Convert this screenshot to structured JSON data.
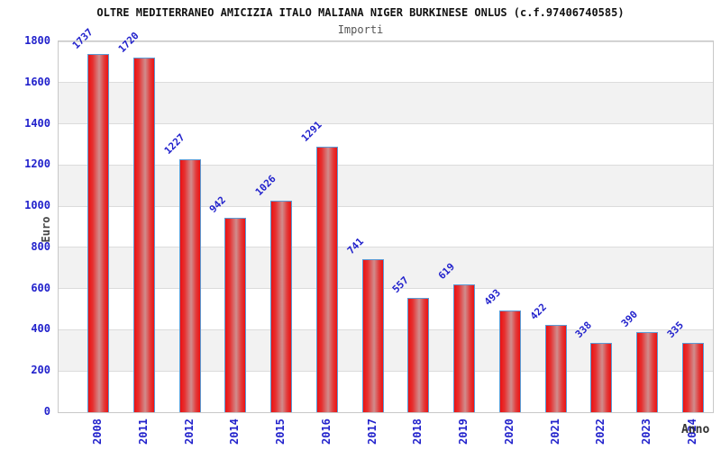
{
  "chart_data": {
    "type": "bar",
    "title": "OLTRE MEDITERRANEO AMICIZIA ITALO MALIANA NIGER BURKINESE ONLUS (c.f.97406740585)",
    "subtitle": "Importi",
    "xlabel": "Anno",
    "ylabel": "Euro",
    "categories": [
      "2008",
      "2011",
      "2012",
      "2014",
      "2015",
      "2016",
      "2017",
      "2018",
      "2019",
      "2020",
      "2021",
      "2022",
      "2023",
      "2024"
    ],
    "values": [
      1737,
      1720,
      1227,
      942,
      1026,
      1291,
      741,
      557,
      619,
      493,
      422,
      338,
      390,
      335
    ],
    "ylim": [
      0,
      1800
    ],
    "yticks": [
      0,
      200,
      400,
      600,
      800,
      1000,
      1200,
      1400,
      1600,
      1800
    ],
    "grid": true,
    "legend": "none",
    "background_bands": "alternating gray/white every 200 units",
    "colors": {
      "tick_and_value_labels": "#2222cc",
      "bar_edge_red": "#ec1212",
      "bar_center_highlight": "#d08d8d",
      "bar_border_blue": "#5b9bd5",
      "band_gray": "#f2f2f2",
      "gridline": "#dcdcdc",
      "plot_frame": "#c8c8c8",
      "title_color": "#111111",
      "subtitle_color": "#555555",
      "axis_title_color": "#444444"
    }
  }
}
